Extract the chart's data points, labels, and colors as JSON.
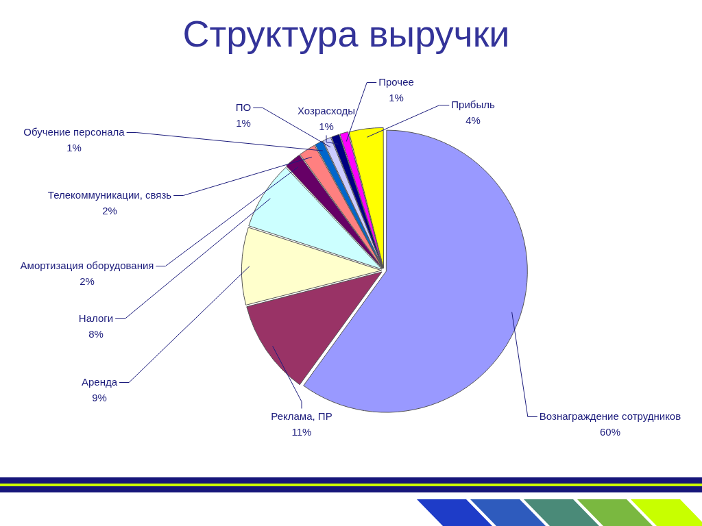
{
  "chart_data": {
    "type": "pie",
    "title": "Структура выручки",
    "categories": [
      "Вознаграждение сотрудников",
      "Реклама, ПР",
      "Аренда",
      "Налоги",
      "Амортизация оборудования",
      "Телекоммуникации, связь",
      "Обучение персонала",
      "ПО",
      "Хозрасходы",
      "Прочее",
      "Прибыль"
    ],
    "values": [
      60,
      11,
      9,
      8,
      2,
      2,
      1,
      1,
      1,
      1,
      4
    ],
    "value_labels": [
      "60%",
      "11%",
      "9%",
      "8%",
      "2%",
      "2%",
      "1%",
      "1%",
      "1%",
      "1%",
      "4%"
    ],
    "colors": [
      "#9999ff",
      "#993366",
      "#ffffcc",
      "#ccffff",
      "#660066",
      "#ff8080",
      "#0066cc",
      "#ccccff",
      "#000080",
      "#ff00ff",
      "#ffff00"
    ]
  }
}
